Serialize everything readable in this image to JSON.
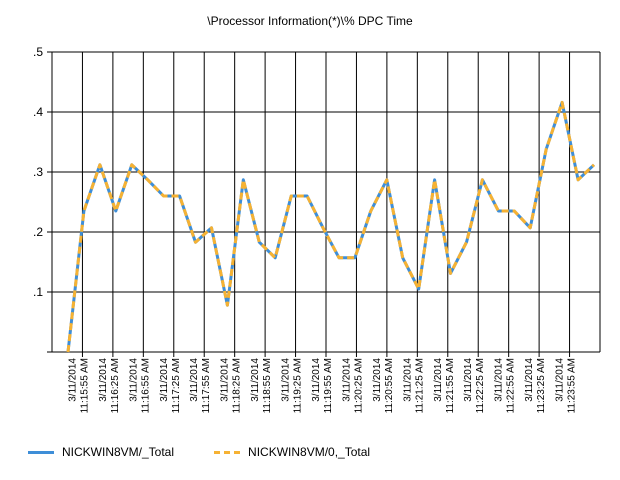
{
  "chart_data": {
    "type": "line",
    "title": "\\Processor Information(*)\\% DPC Time",
    "xlabel": "",
    "ylabel": "",
    "ylim": [
      0,
      0.5
    ],
    "yticks": [
      {
        "value": 0.1,
        "label": ".1"
      },
      {
        "value": 0.2,
        "label": ".2"
      },
      {
        "value": 0.3,
        "label": ".3"
      },
      {
        "value": 0.4,
        "label": ".4"
      },
      {
        "value": 0.5,
        "label": ".5"
      }
    ],
    "grid": true,
    "legend_position": "bottom-left",
    "tick_labels": [
      {
        "date": "3/11/2014",
        "time": "11:15:55 AM"
      },
      {
        "date": "3/11/2014",
        "time": "11:16:25 AM"
      },
      {
        "date": "3/11/2014",
        "time": "11:16:55 AM"
      },
      {
        "date": "3/11/2014",
        "time": "11:17:25 AM"
      },
      {
        "date": "3/11/2014",
        "time": "11:17:55 AM"
      },
      {
        "date": "3/11/2014",
        "time": "11:18:25 AM"
      },
      {
        "date": "3/11/2014",
        "time": "11:18:55 AM"
      },
      {
        "date": "3/11/2014",
        "time": "11:19:25 AM"
      },
      {
        "date": "3/11/2014",
        "time": "11:19:55 AM"
      },
      {
        "date": "3/11/2014",
        "time": "11:20:25 AM"
      },
      {
        "date": "3/11/2014",
        "time": "11:20:55 AM"
      },
      {
        "date": "3/11/2014",
        "time": "11:21:25 AM"
      },
      {
        "date": "3/11/2014",
        "time": "11:21:55 AM"
      },
      {
        "date": "3/11/2014",
        "time": "11:22:25 AM"
      },
      {
        "date": "3/11/2014",
        "time": "11:22:55 AM"
      },
      {
        "date": "3/11/2014",
        "time": "11:23:25 AM"
      },
      {
        "date": "3/11/2014",
        "time": "11:23:55 AM"
      }
    ],
    "series": [
      {
        "name": "NICKWIN8VM/_Total",
        "color": "#3e8ed8",
        "style": "solid",
        "values": [
          0.0,
          0.235,
          0.312,
          0.235,
          0.312,
          0.287,
          0.26,
          0.26,
          0.183,
          0.207,
          0.078,
          0.287,
          0.183,
          0.157,
          0.26,
          0.26,
          0.207,
          0.157,
          0.157,
          0.235,
          0.287,
          0.157,
          0.105,
          0.287,
          0.131,
          0.183,
          0.287,
          0.235,
          0.235,
          0.207,
          0.338,
          0.416,
          0.287,
          0.312
        ]
      },
      {
        "name": "NICKWIN8VM/0,_Total",
        "color": "#f6b233",
        "style": "dashed",
        "values": [
          0.0,
          0.235,
          0.312,
          0.235,
          0.312,
          0.287,
          0.26,
          0.26,
          0.183,
          0.207,
          0.078,
          0.287,
          0.183,
          0.157,
          0.26,
          0.26,
          0.207,
          0.157,
          0.157,
          0.235,
          0.287,
          0.157,
          0.105,
          0.287,
          0.131,
          0.183,
          0.287,
          0.235,
          0.235,
          0.207,
          0.338,
          0.416,
          0.287,
          0.312
        ]
      }
    ]
  }
}
